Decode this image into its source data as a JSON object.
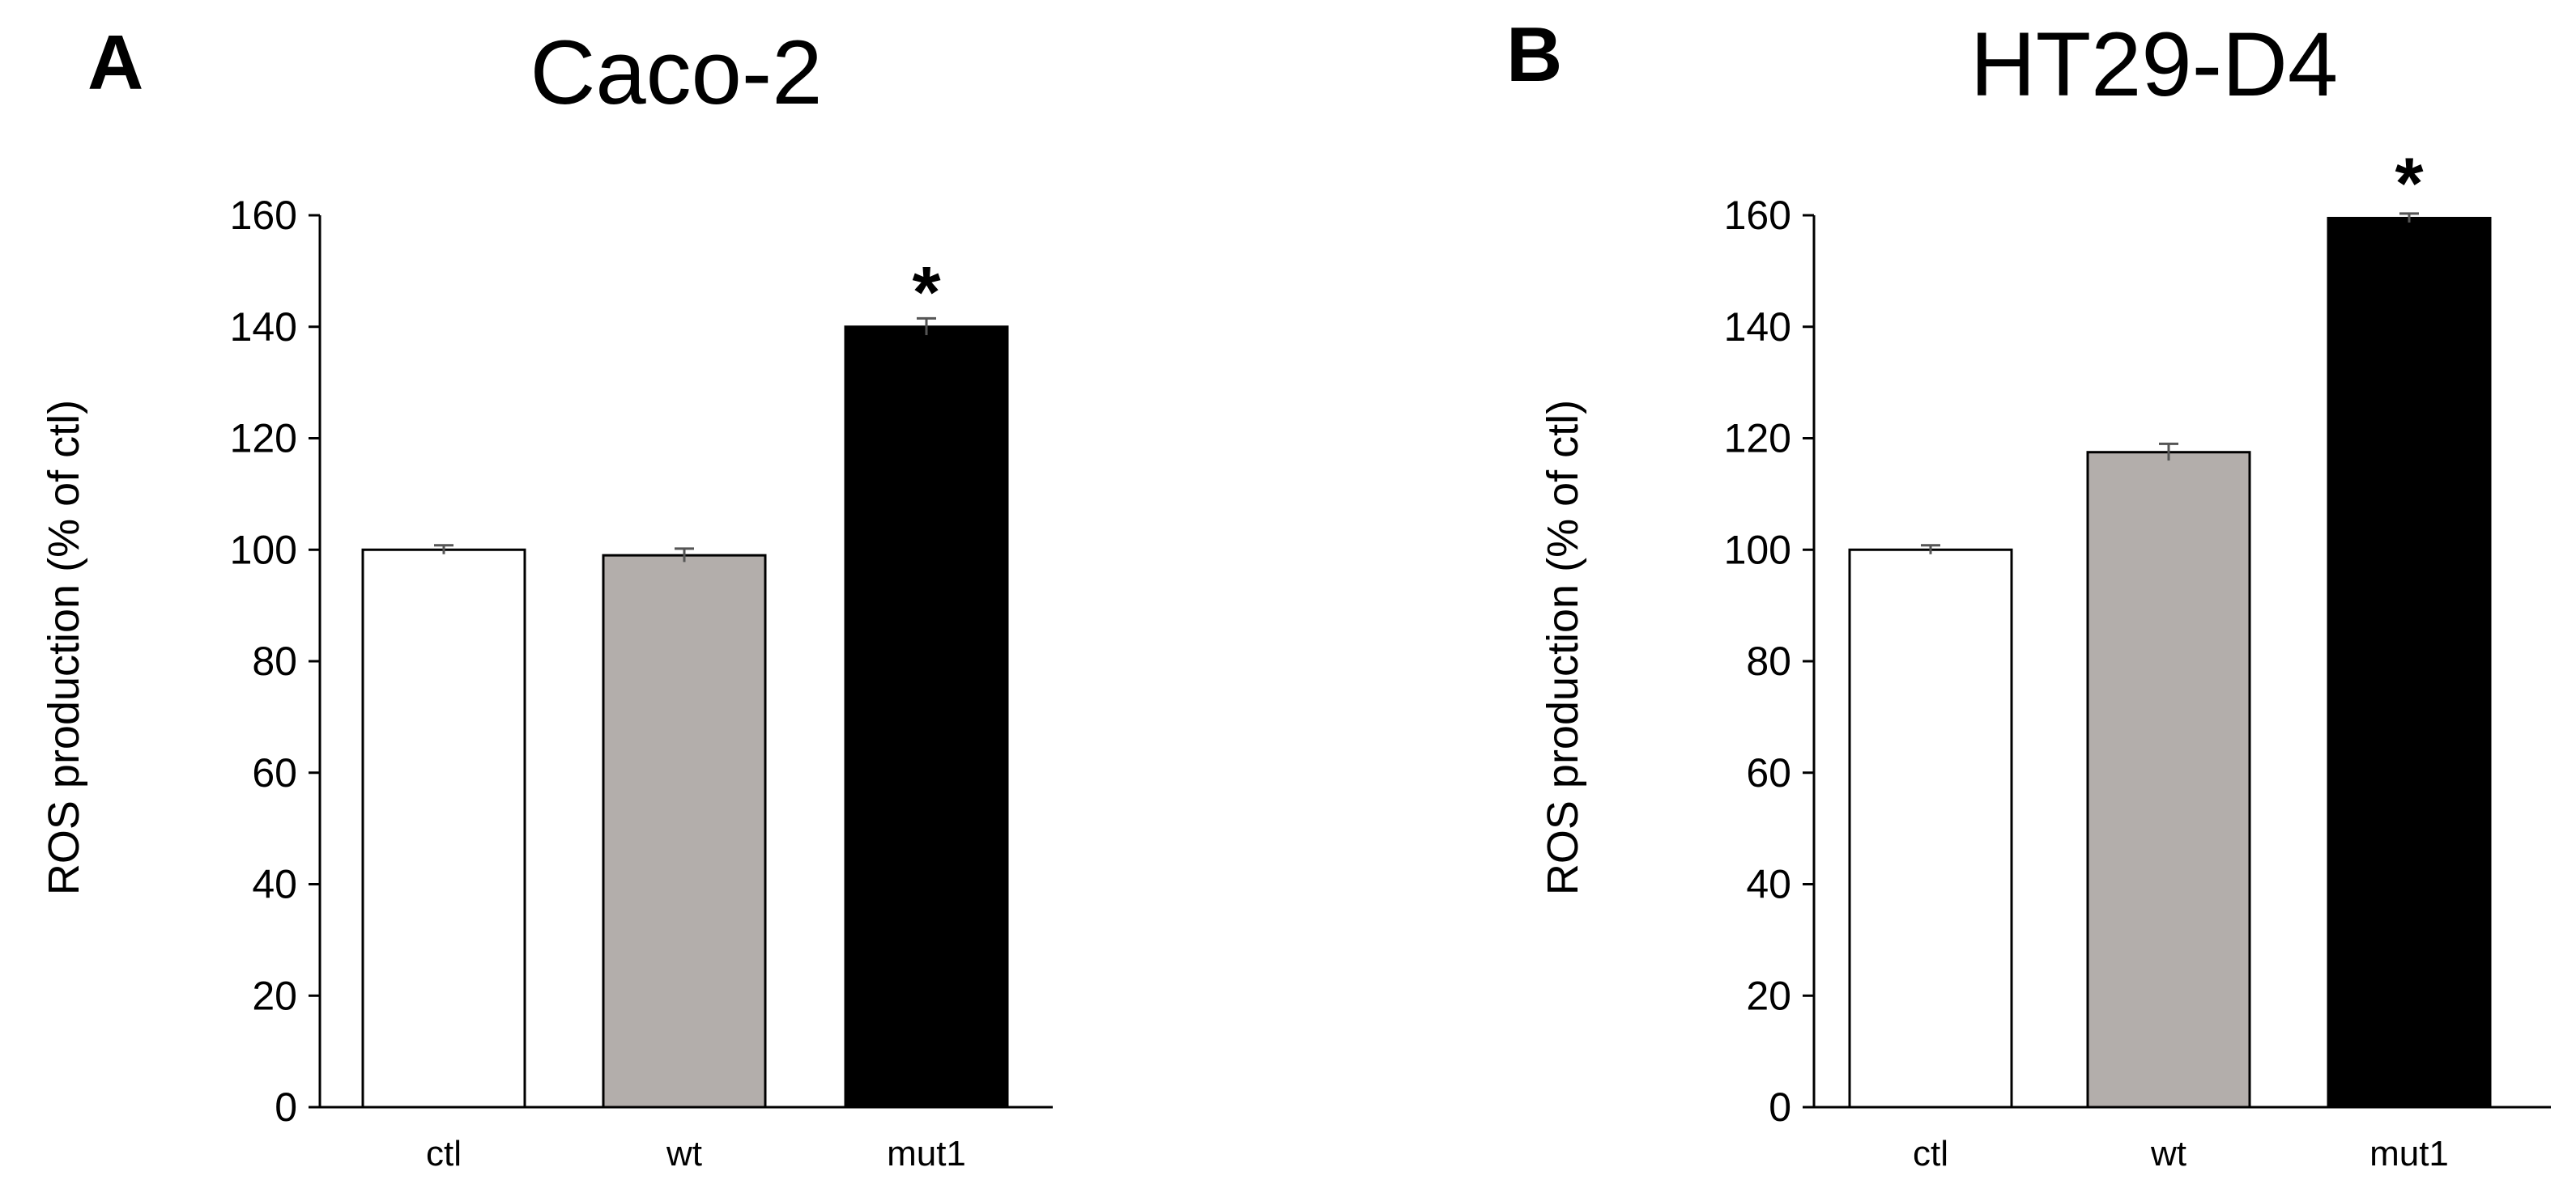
{
  "chart_data": [
    {
      "type": "bar",
      "panel_label": "A",
      "title": "Caco-2",
      "ylabel": "ROS production (% of ctl)",
      "xlabel": "",
      "categories": [
        "ctl",
        "wt",
        "mut1"
      ],
      "values": [
        100,
        99,
        140
      ],
      "errors": [
        0.8,
        1.2,
        1.5
      ],
      "bar_colors": [
        "#ffffff",
        "#b3aeab",
        "#000000"
      ],
      "significance": [
        "",
        "",
        "*"
      ],
      "ylim": [
        0,
        160
      ],
      "yticks": [
        0,
        20,
        40,
        60,
        80,
        100,
        120,
        140,
        160
      ],
      "grid": false
    },
    {
      "type": "bar",
      "panel_label": "B",
      "title": "HT29-D4",
      "ylabel": "ROS production (% of ctl)",
      "xlabel": "",
      "categories": [
        "ctl",
        "wt",
        "mut1"
      ],
      "values": [
        100,
        117.5,
        159.5
      ],
      "errors": [
        0.8,
        1.5,
        0.8
      ],
      "bar_colors": [
        "#ffffff",
        "#b3aeab",
        "#000000"
      ],
      "significance": [
        "",
        "",
        "*"
      ],
      "ylim": [
        0,
        160
      ],
      "yticks": [
        0,
        20,
        40,
        60,
        80,
        100,
        120,
        140,
        160
      ],
      "grid": false
    }
  ]
}
